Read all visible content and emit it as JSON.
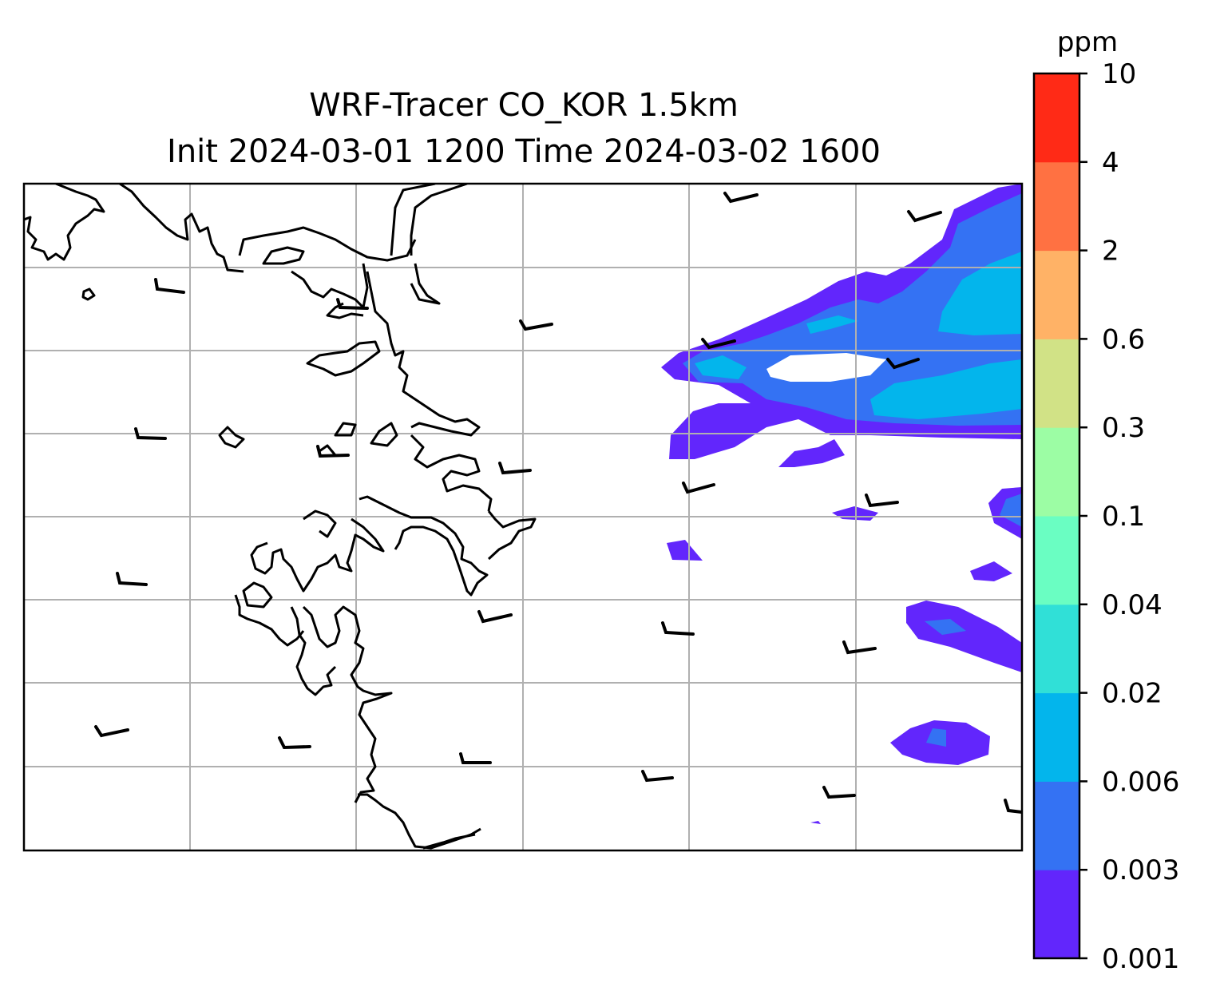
{
  "title_line1": "WRF-Tracer CO_KOR 1.5km",
  "title_line2": "Init 2024-03-01 1200 Time 2024-03-02 1600",
  "colorbar": {
    "unit": "ppm",
    "levels": [
      "0.001",
      "0.003",
      "0.006",
      "0.02",
      "0.04",
      "0.1",
      "0.3",
      "0.6",
      "2",
      "4",
      "10"
    ],
    "colors": [
      "#6226fc",
      "#3472f3",
      "#03b5ec",
      "#30e0d7",
      "#6afec2",
      "#9cfda4",
      "#d1e286",
      "#ffb266",
      "#ff7142",
      "#ff2a16"
    ]
  },
  "map": {
    "gridlines": true,
    "grid_color": "#b0b0b0",
    "coastline_color": "#000000",
    "wind_barbs": true
  }
}
